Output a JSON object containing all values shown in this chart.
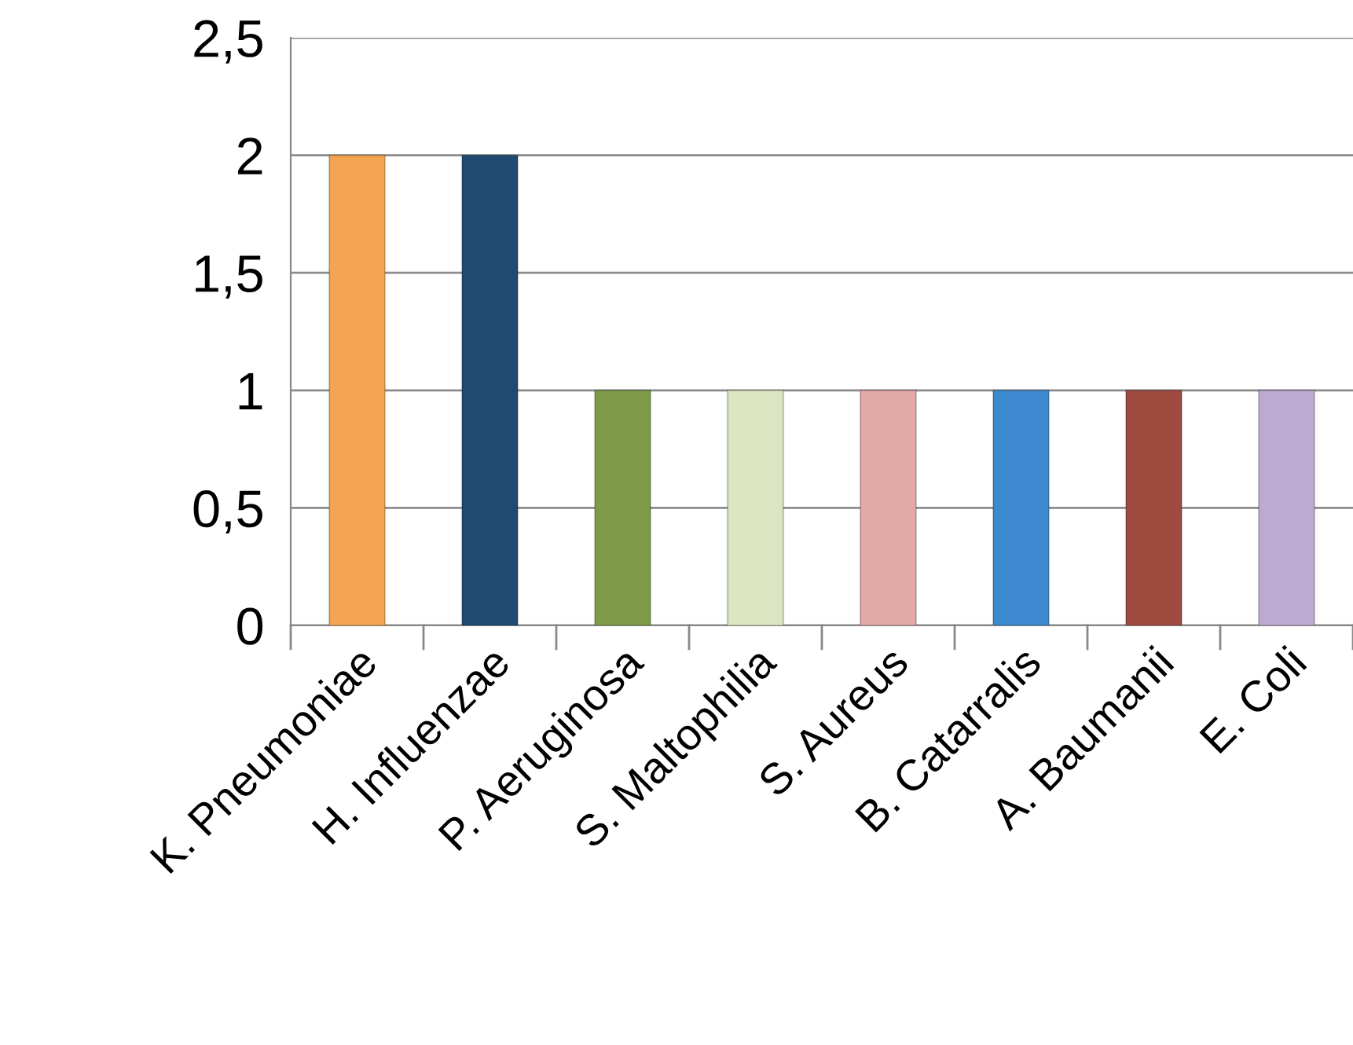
{
  "chart_data": {
    "type": "bar",
    "categories": [
      "K. Pneumoniae",
      "H. Influenzae",
      "P. Aeruginosa",
      "S. Maltophilia",
      "S. Aureus",
      "B. Catarralis",
      "A. Baumanii",
      "E. Coli"
    ],
    "values": [
      2,
      2,
      1,
      1,
      1,
      1,
      1,
      1
    ],
    "colors": [
      "#f5a452",
      "#1f4a72",
      "#7f9b4a",
      "#dbe5c2",
      "#e3a9a6",
      "#3d8ad0",
      "#a04a40",
      "#bcaad0"
    ],
    "ylim": [
      0,
      2.5
    ],
    "yticks": [
      0,
      {
        "value": 0.5,
        "label": "0,5"
      },
      1,
      {
        "value": 1.5,
        "label": "1,5"
      },
      2,
      {
        "value": 2.5,
        "label": "2,5"
      }
    ],
    "grid": "y"
  }
}
